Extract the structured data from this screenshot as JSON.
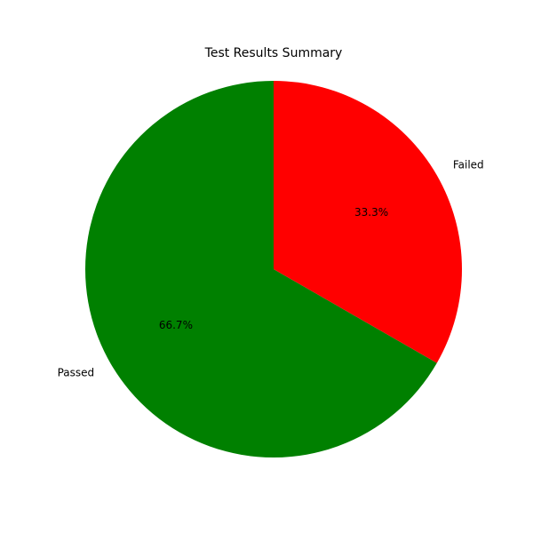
{
  "chart_data": {
    "type": "pie",
    "title": "Test Results Summary",
    "labels": [
      "Passed",
      "Failed"
    ],
    "values": [
      66.7,
      33.3
    ],
    "percent_labels": [
      "66.7%",
      "33.3%"
    ],
    "colors": [
      "#008000",
      "#ff0000"
    ],
    "start_angle_deg": 90,
    "direction": "counterclockwise"
  }
}
